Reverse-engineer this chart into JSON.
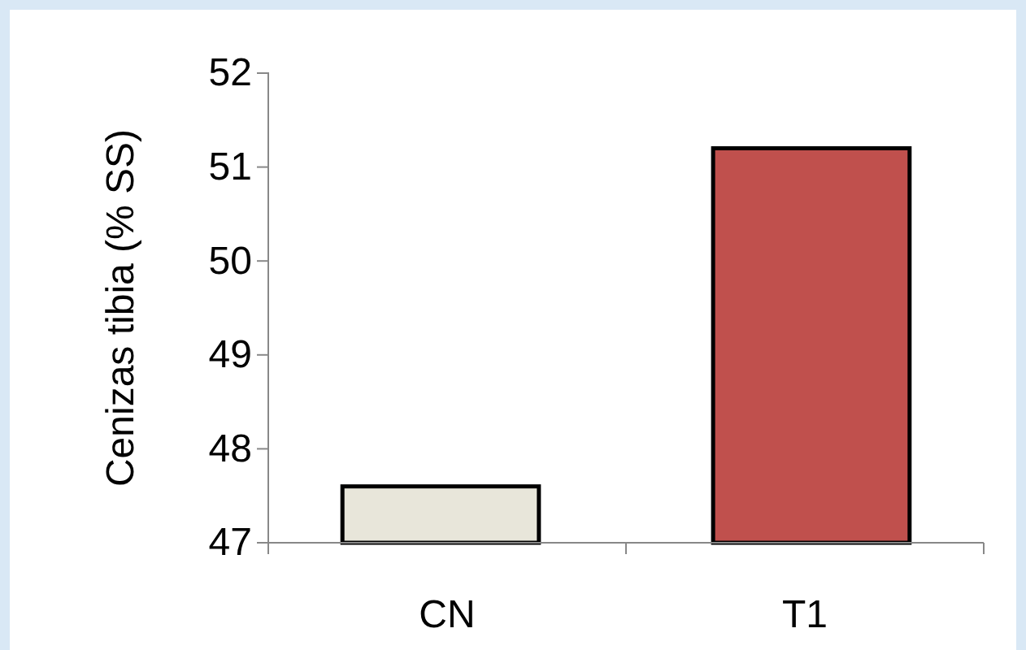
{
  "chart_data": {
    "type": "bar",
    "ylabel": "Cenizas tibia (% SS)",
    "categories": [
      "CN",
      "T1"
    ],
    "values": [
      47.6,
      51.2
    ],
    "colors": [
      "#e8e6da",
      "#c0504d"
    ],
    "ylim": [
      47,
      52
    ],
    "yticks": [
      47,
      48,
      49,
      50,
      51,
      52
    ],
    "grid": false
  }
}
